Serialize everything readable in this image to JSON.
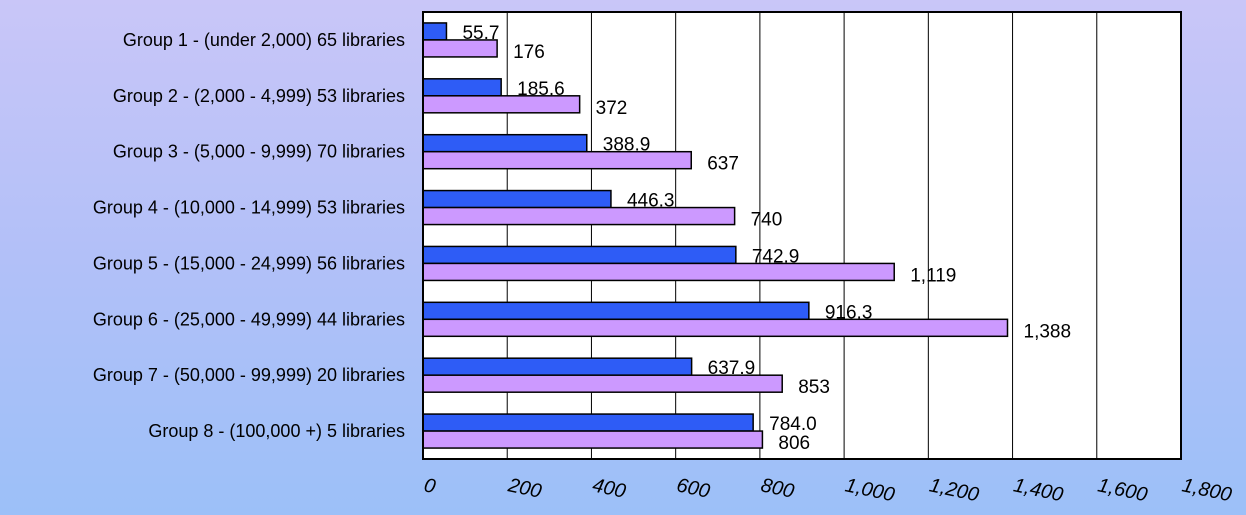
{
  "colors": {
    "series_a": "#2e5cf6",
    "series_b": "#cc99ff",
    "plot_background": "#ffffff",
    "bar_stroke": "#000000"
  },
  "chart_data": {
    "type": "bar",
    "orientation": "horizontal",
    "title": "",
    "xlabel": "",
    "ylabel": "",
    "categories": [
      "Group 1 - (under 2,000) 65 libraries",
      "Group 2 - (2,000 - 4,999) 53 libraries",
      "Group 3 - (5,000 - 9,999) 70 libraries",
      "Group 4 - (10,000 - 14,999) 53 libraries",
      "Group 5 - (15,000 - 24,999) 56 libraries",
      "Group 6 - (25,000 - 49,999) 44 libraries",
      "Group 7 - (50,000 - 99,999) 20 libraries",
      "Group 8 - (100,000 +) 5 libraries"
    ],
    "series": [
      {
        "values": [
          55.7,
          185.6,
          388.9,
          446.3,
          742.9,
          916.3,
          637.9,
          784.0
        ],
        "labels": [
          "55.7",
          "185.6",
          "388.9",
          "446.3",
          "742.9",
          "916.3",
          "637.9",
          "784.0"
        ],
        "color": "#2e5cf6"
      },
      {
        "values": [
          176,
          372,
          637,
          740,
          1119,
          1388,
          853,
          806
        ],
        "labels": [
          "176",
          "372",
          "637",
          "740",
          "1,119",
          "1,388",
          "853",
          "806"
        ],
        "color": "#cc99ff"
      }
    ],
    "xlim": [
      0,
      1800
    ],
    "ticks": [
      0,
      200,
      400,
      600,
      800,
      1000,
      1200,
      1400,
      1600,
      1800
    ],
    "tick_labels": [
      "0",
      "200",
      "400",
      "600",
      "800",
      "1,000",
      "1,200",
      "1,400",
      "1,600",
      "1,800"
    ],
    "grid": true,
    "legend": "none"
  }
}
